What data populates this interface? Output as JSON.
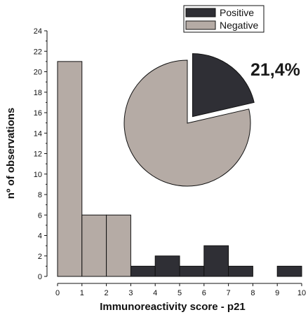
{
  "chart_data": {
    "type": "bar",
    "xlabel": "Immunoreactivity score - p21",
    "ylabel": "nº of observations",
    "xlim": [
      0,
      10
    ],
    "ylim": [
      0,
      24
    ],
    "x_ticks": [
      "0",
      "1",
      "2",
      "3",
      "4",
      "5",
      "6",
      "7",
      "8",
      "9",
      "10"
    ],
    "y_ticks": [
      "0",
      "2",
      "4",
      "6",
      "8",
      "10",
      "12",
      "14",
      "16",
      "18",
      "20",
      "22",
      "24"
    ],
    "legend": {
      "placement": "top-right"
    },
    "series": [
      {
        "name": "Positive",
        "color": "#2f2f35",
        "bins": [
          {
            "x0": 3,
            "x1": 4,
            "value": 1
          },
          {
            "x0": 4,
            "x1": 5,
            "value": 2
          },
          {
            "x0": 5,
            "x1": 6,
            "value": 1
          },
          {
            "x0": 6,
            "x1": 7,
            "value": 3
          },
          {
            "x0": 7,
            "x1": 8,
            "value": 1
          },
          {
            "x0": 8,
            "x1": 9,
            "value": 0
          },
          {
            "x0": 9,
            "x1": 10,
            "value": 1
          }
        ]
      },
      {
        "name": "Negative",
        "color": "#b5aba5",
        "bins": [
          {
            "x0": 0,
            "x1": 1,
            "value": 21
          },
          {
            "x0": 1,
            "x1": 2,
            "value": 6
          },
          {
            "x0": 2,
            "x1": 3,
            "value": 6
          }
        ]
      }
    ],
    "inset_pie": {
      "type": "pie",
      "slices": [
        {
          "label": "Positive",
          "value": 21.4,
          "color": "#2f2f35",
          "exploded": true
        },
        {
          "label": "Negative",
          "value": 78.6,
          "color": "#b5aba5",
          "exploded": false
        }
      ],
      "annotation": "21,4%"
    }
  }
}
